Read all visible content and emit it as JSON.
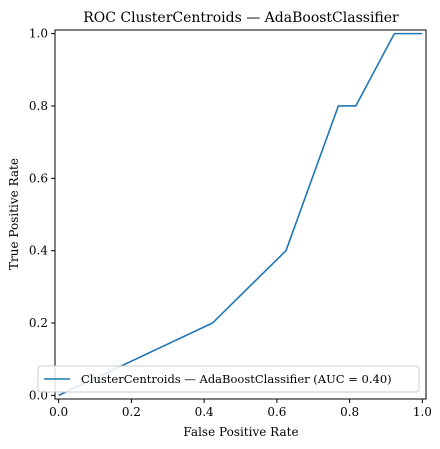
{
  "chart_data": {
    "type": "line",
    "title": "ROC ClusterCentroids — AdaBoostClassifier",
    "xlabel": "False Positive Rate",
    "ylabel": "True Positive Rate",
    "xlim": [
      -0.01,
      1.01
    ],
    "ylim": [
      -0.01,
      1.01
    ],
    "xticks": [
      0.0,
      0.2,
      0.4,
      0.6,
      0.8,
      1.0
    ],
    "yticks": [
      0.0,
      0.2,
      0.4,
      0.6,
      0.8,
      1.0
    ],
    "xtick_labels": [
      "0.0",
      "0.2",
      "0.4",
      "0.6",
      "0.8",
      "1.0"
    ],
    "ytick_labels": [
      "0.0",
      "0.2",
      "0.4",
      "0.6",
      "0.8",
      "1.0"
    ],
    "grid": false,
    "legend_position": "lower-right",
    "series": [
      {
        "name": "ClusterCentroids — AdaBoostClassifier (AUC = 0.40)",
        "color": "#1f77b4",
        "x": [
          0.0,
          0.423,
          0.625,
          0.769,
          0.817,
          0.923,
          1.0
        ],
        "y": [
          0.0,
          0.2,
          0.4,
          0.8,
          0.8,
          1.0,
          1.0
        ]
      }
    ]
  }
}
